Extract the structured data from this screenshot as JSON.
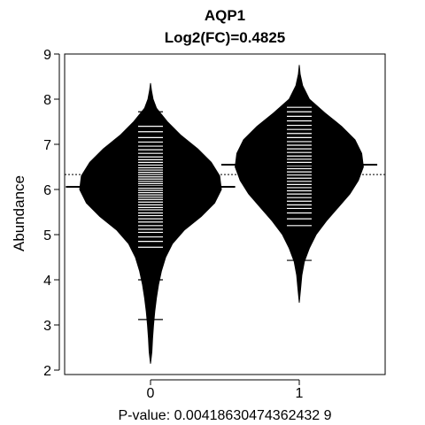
{
  "chart_data": {
    "type": "beanplot",
    "title": "AQP1",
    "subtitle": "Log2(FC)=0.4825",
    "xlabel": "P-value: 0.00418630474362432 9",
    "ylabel": "Abundance",
    "categories": [
      "0",
      "1"
    ],
    "y_ticks": [
      "2",
      "3",
      "4",
      "5",
      "6",
      "7",
      "8",
      "9"
    ],
    "ylim": [
      1.95,
      9.05
    ],
    "overall_mean": 6.33,
    "grid": false,
    "fill_color": "#000000",
    "line_color": "#ffffff",
    "series": [
      {
        "category": "0",
        "mean": 6.06,
        "density": [
          [
            2.15,
            0.0
          ],
          [
            2.4,
            0.008
          ],
          [
            2.7,
            0.012
          ],
          [
            3.0,
            0.018
          ],
          [
            3.3,
            0.025
          ],
          [
            3.6,
            0.035
          ],
          [
            3.9,
            0.048
          ],
          [
            4.2,
            0.065
          ],
          [
            4.5,
            0.09
          ],
          [
            4.8,
            0.13
          ],
          [
            5.1,
            0.2
          ],
          [
            5.4,
            0.3
          ],
          [
            5.7,
            0.38
          ],
          [
            6.0,
            0.42
          ],
          [
            6.3,
            0.41
          ],
          [
            6.6,
            0.36
          ],
          [
            6.9,
            0.28
          ],
          [
            7.2,
            0.18
          ],
          [
            7.5,
            0.1
          ],
          [
            7.8,
            0.035
          ],
          [
            8.0,
            0.015
          ],
          [
            8.2,
            0.005
          ],
          [
            8.35,
            0.0
          ]
        ],
        "observations": [
          3.12,
          4.0,
          4.4,
          4.72,
          4.85,
          4.95,
          5.05,
          5.12,
          5.2,
          5.28,
          5.35,
          5.42,
          5.48,
          5.55,
          5.6,
          5.66,
          5.72,
          5.78,
          5.83,
          5.88,
          5.93,
          5.98,
          6.03,
          6.08,
          6.13,
          6.18,
          6.23,
          6.28,
          6.33,
          6.38,
          6.43,
          6.48,
          6.54,
          6.6,
          6.66,
          6.72,
          6.8,
          6.88,
          6.96,
          7.05,
          7.15,
          7.28,
          7.4,
          7.72
        ]
      },
      {
        "category": "1",
        "mean": 6.55,
        "density": [
          [
            3.5,
            0.0
          ],
          [
            3.8,
            0.008
          ],
          [
            4.1,
            0.015
          ],
          [
            4.4,
            0.03
          ],
          [
            4.7,
            0.06
          ],
          [
            5.0,
            0.1
          ],
          [
            5.3,
            0.16
          ],
          [
            5.6,
            0.23
          ],
          [
            5.9,
            0.3
          ],
          [
            6.2,
            0.35
          ],
          [
            6.5,
            0.38
          ],
          [
            6.8,
            0.37
          ],
          [
            7.1,
            0.33
          ],
          [
            7.4,
            0.25
          ],
          [
            7.7,
            0.15
          ],
          [
            8.0,
            0.06
          ],
          [
            8.3,
            0.02
          ],
          [
            8.55,
            0.005
          ],
          [
            8.75,
            0.0
          ]
        ],
        "observations": [
          4.43,
          5.2,
          5.35,
          5.48,
          5.58,
          5.66,
          5.74,
          5.82,
          5.9,
          5.97,
          6.04,
          6.11,
          6.18,
          6.25,
          6.32,
          6.39,
          6.46,
          6.53,
          6.6,
          6.67,
          6.74,
          6.82,
          6.9,
          6.98,
          7.06,
          7.15,
          7.24,
          7.33,
          7.42,
          7.52,
          7.62,
          7.72,
          7.82
        ]
      }
    ]
  }
}
